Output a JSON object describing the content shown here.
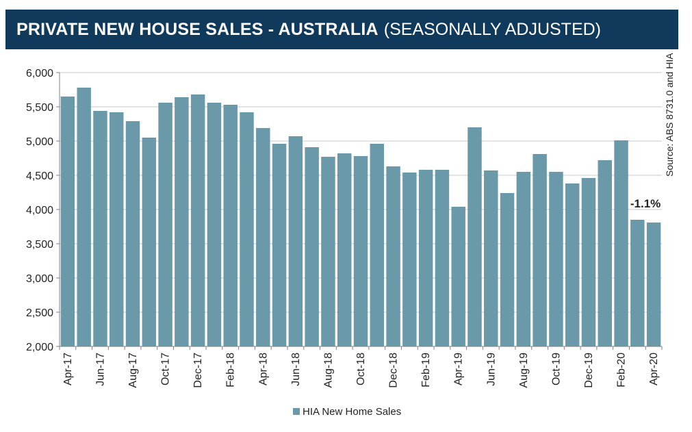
{
  "title": {
    "main": "PRIVATE NEW HOUSE SALES -  AUSTRALIA",
    "sub": "(SEASONALLY ADJUSTED)"
  },
  "colors": {
    "title_bg": "#0f3a5c",
    "bar": "#6a9aaa",
    "gridline": "#c8c8c8",
    "axis": "#808080",
    "text": "#222222"
  },
  "chart_data": {
    "type": "bar",
    "title": "PRIVATE NEW HOUSE SALES -  AUSTRALIA (SEASONALLY ADJUSTED)",
    "xlabel": "",
    "ylabel": "",
    "ylim": [
      2000,
      6000
    ],
    "yticks": [
      "2,000",
      "2,500",
      "3,000",
      "3,500",
      "4,000",
      "4,500",
      "5,000",
      "5,500",
      "6,000"
    ],
    "ytick_values": [
      2000,
      2500,
      3000,
      3500,
      4000,
      4500,
      5000,
      5500,
      6000
    ],
    "categories": [
      "Apr-17",
      "May-17",
      "Jun-17",
      "Jul-17",
      "Aug-17",
      "Sep-17",
      "Oct-17",
      "Nov-17",
      "Dec-17",
      "Jan-18",
      "Feb-18",
      "Mar-18",
      "Apr-18",
      "May-18",
      "Jun-18",
      "Jul-18",
      "Aug-18",
      "Sep-18",
      "Oct-18",
      "Nov-18",
      "Dec-18",
      "Jan-19",
      "Feb-19",
      "Mar-19",
      "Apr-19",
      "May-19",
      "Jun-19",
      "Jul-19",
      "Aug-19",
      "Sep-19",
      "Oct-19",
      "Nov-19",
      "Dec-19",
      "Jan-20",
      "Feb-20",
      "Mar-20",
      "Apr-20"
    ],
    "tick_labels": [
      "Apr-17",
      "Jun-17",
      "Aug-17",
      "Oct-17",
      "Dec-17",
      "Feb-18",
      "Apr-18",
      "Jun-18",
      "Aug-18",
      "Oct-18",
      "Dec-18",
      "Feb-19",
      "Apr-19",
      "Jun-19",
      "Aug-19",
      "Oct-19",
      "Dec-19",
      "Feb-20",
      "Apr-20"
    ],
    "series": [
      {
        "name": "HIA New Home Sales",
        "values": [
          5650,
          5780,
          5440,
          5420,
          5290,
          5050,
          5560,
          5640,
          5680,
          5560,
          5530,
          5420,
          5190,
          4960,
          5070,
          4910,
          4770,
          4820,
          4780,
          4960,
          4630,
          4540,
          4580,
          4580,
          4040,
          5200,
          4570,
          4240,
          4550,
          4810,
          4550,
          4380,
          4460,
          4720,
          5010,
          3850,
          3810
        ]
      }
    ],
    "legend": {
      "position": "bottom",
      "entries": [
        "HIA New Home Sales"
      ]
    },
    "annotations": [
      {
        "text": "-1.1%",
        "category": "Apr-20"
      }
    ],
    "source": "Source: ABS 8731.0 and HIA",
    "grid": true
  }
}
